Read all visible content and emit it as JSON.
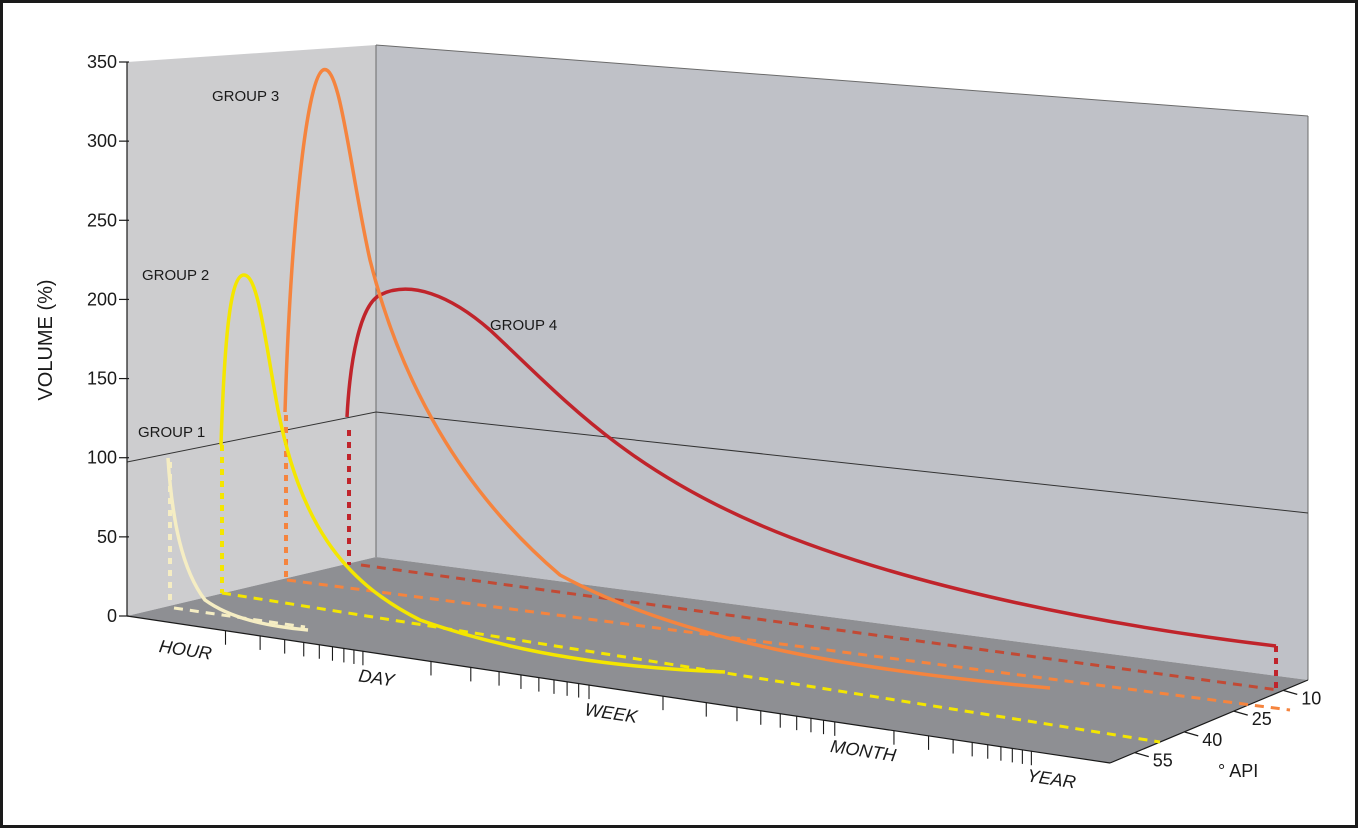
{
  "chart_data": {
    "type": "line",
    "variant": "3d-ribbon",
    "ylabel": "VOLUME (%)",
    "ylim": [
      0,
      350
    ],
    "y_ticks": [
      "0",
      "50",
      "100",
      "150",
      "200",
      "250",
      "300",
      "350"
    ],
    "x_scale": "log",
    "x_categories": [
      "HOUR",
      "DAY",
      "WEEK",
      "MONTH",
      "YEAR"
    ],
    "z_label": "° API",
    "z_ticks": [
      "10",
      "25",
      "40",
      "55"
    ],
    "grid": "back walls at VOLUME 100",
    "series": [
      {
        "name": "GROUP 1",
        "api": 55,
        "color": "#f5edc3",
        "peak_volume": 100,
        "points": [
          [
            "HOUR",
            100
          ],
          [
            "HOUR",
            60
          ],
          [
            "HOUR",
            30
          ],
          [
            "HOUR",
            10
          ],
          [
            "HOUR",
            2
          ]
        ]
      },
      {
        "name": "GROUP 2",
        "api": 40,
        "color": "#f4e600",
        "peak_volume": 215,
        "points": [
          [
            "HOUR",
            100
          ],
          [
            "HOUR",
            215
          ],
          [
            "HOUR",
            100
          ],
          [
            "DAY",
            30
          ],
          [
            "DAY",
            12
          ],
          [
            "WEEK",
            5
          ],
          [
            "WEEK",
            1
          ]
        ]
      },
      {
        "name": "GROUP 3",
        "api": 25,
        "color": "#f5843e",
        "peak_volume": 345,
        "points": [
          [
            "HOUR",
            100
          ],
          [
            "HOUR",
            345
          ],
          [
            "DAY",
            200
          ],
          [
            "DAY",
            80
          ],
          [
            "WEEK",
            30
          ],
          [
            "MONTH",
            10
          ],
          [
            "YEAR",
            1
          ]
        ]
      },
      {
        "name": "GROUP 4",
        "api": 10,
        "color": "#c0242b",
        "peak_volume": 208,
        "points": [
          [
            "DAY",
            100
          ],
          [
            "DAY",
            208
          ],
          [
            "WEEK",
            150
          ],
          [
            "WEEK",
            80
          ],
          [
            "MONTH",
            40
          ],
          [
            "YEAR",
            10
          ]
        ]
      }
    ]
  }
}
